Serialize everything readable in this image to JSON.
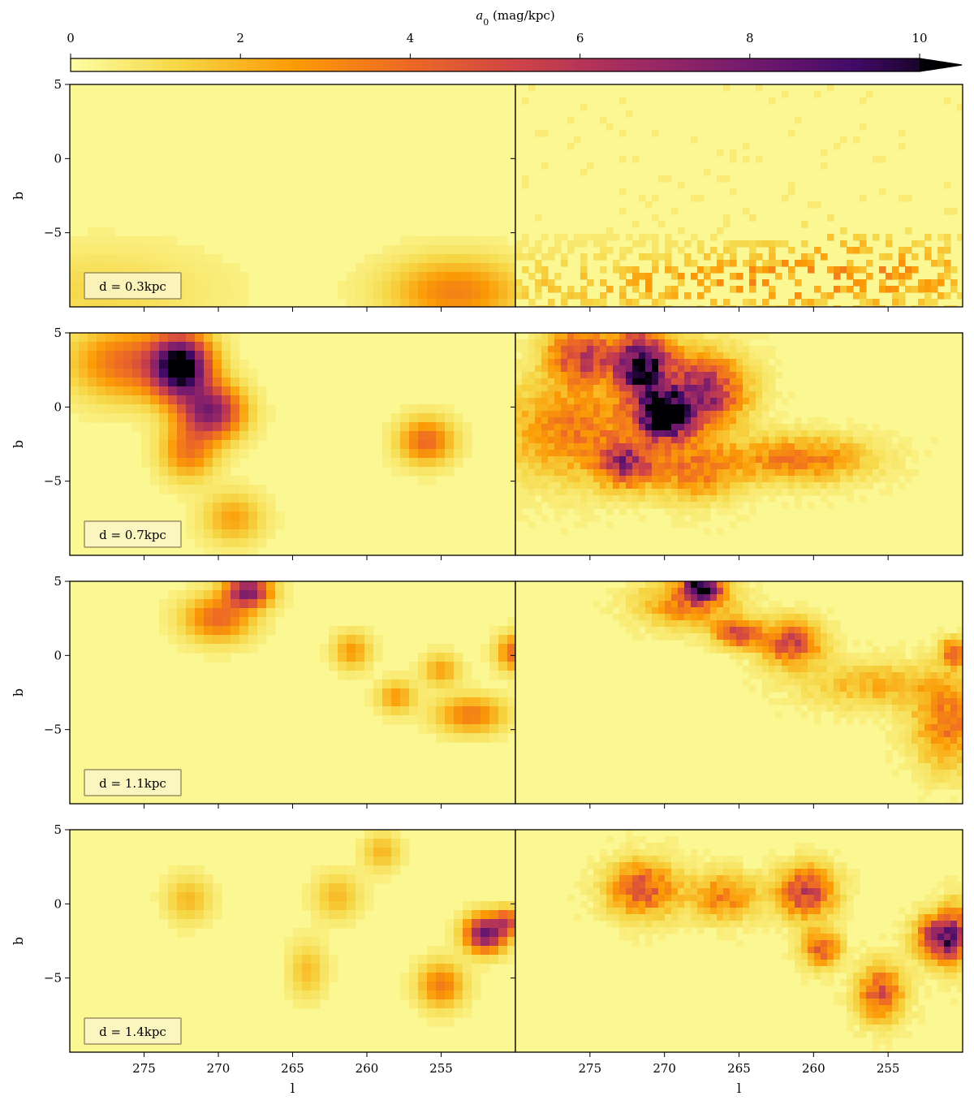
{
  "colorbar": {
    "label_var": "a",
    "label_sub": "0",
    "label_unit": " (mag/kpc)",
    "range": [
      0,
      10
    ],
    "extend": "max",
    "cmap": "inferno_r",
    "ticks": [
      "0",
      "2",
      "4",
      "6",
      "8",
      "10"
    ]
  },
  "axes": {
    "ylabel": "b",
    "xlabel": "l",
    "yticks": [
      "5",
      "0",
      "−5"
    ],
    "xticks": [
      "275",
      "270",
      "265",
      "260",
      "255"
    ]
  },
  "chart_data": {
    "type": "heatmap",
    "xlabel": "l",
    "ylabel": "b",
    "xlim": [
      280,
      250
    ],
    "ylim": [
      -10,
      5
    ],
    "colorbar_range": [
      0,
      10
    ],
    "rows": [
      {
        "distance_label": "d = 0.3kpc",
        "distance_kpc": 0.3,
        "left_blobs": [
          {
            "l": 254,
            "b": -9,
            "sl": 3.0,
            "sb": 1.5,
            "a0": 2.8
          },
          {
            "l": 278,
            "b": -9,
            "sl": 5.0,
            "sb": 2.0,
            "a0": 0.8
          }
        ],
        "right_blobs": [
          {
            "l": 265,
            "b": -8.5,
            "sl": 12.0,
            "sb": 1.2,
            "a0": 1.5
          },
          {
            "l": 257,
            "b": -7.0,
            "sl": 6.0,
            "sb": 1.6,
            "a0": 1.2
          }
        ]
      },
      {
        "distance_label": "d = 0.7kpc",
        "distance_kpc": 0.7,
        "left_blobs": [
          {
            "l": 272.5,
            "b": 2.7,
            "sl": 1.3,
            "sb": 1.4,
            "a0": 10
          },
          {
            "l": 270.5,
            "b": -0.3,
            "sl": 1.4,
            "sb": 1.2,
            "a0": 6.8
          },
          {
            "l": 276,
            "b": 3.0,
            "sl": 2.5,
            "sb": 1.6,
            "a0": 3.5
          },
          {
            "l": 272,
            "b": -3.0,
            "sl": 1.2,
            "sb": 1.2,
            "a0": 3.0
          },
          {
            "l": 256,
            "b": -2.3,
            "sl": 1.2,
            "sb": 1.0,
            "a0": 3.5
          },
          {
            "l": 269,
            "b": -7.5,
            "sl": 1.3,
            "sb": 1.1,
            "a0": 2.0
          }
        ],
        "right_blobs": [
          {
            "l": 270,
            "b": -0.7,
            "sl": 1.2,
            "sb": 1.0,
            "a0": 11
          },
          {
            "l": 271.5,
            "b": 2.8,
            "sl": 1.2,
            "sb": 1.5,
            "a0": 10
          },
          {
            "l": 267.5,
            "b": 1.0,
            "sl": 1.8,
            "sb": 1.6,
            "a0": 6.5
          },
          {
            "l": 275.5,
            "b": 3.5,
            "sl": 1.5,
            "sb": 1.2,
            "a0": 5.0
          },
          {
            "l": 272.5,
            "b": -3.8,
            "sl": 1.2,
            "sb": 1.0,
            "a0": 5.5
          },
          {
            "l": 276,
            "b": -1.5,
            "sl": 3.0,
            "sb": 2.2,
            "a0": 3.0
          },
          {
            "l": 261,
            "b": -3.5,
            "sl": 3.0,
            "sb": 1.0,
            "a0": 3.0
          },
          {
            "l": 268,
            "b": -4.2,
            "sl": 2.0,
            "sb": 1.3,
            "a0": 3.0
          }
        ]
      },
      {
        "distance_label": "d = 1.1kpc",
        "distance_kpc": 1.1,
        "left_blobs": [
          {
            "l": 268,
            "b": 4.3,
            "sl": 1.0,
            "sb": 0.7,
            "a0": 7.0
          },
          {
            "l": 270,
            "b": 2.5,
            "sl": 1.5,
            "sb": 1.0,
            "a0": 3.5
          },
          {
            "l": 261,
            "b": 0.3,
            "sl": 0.8,
            "sb": 0.8,
            "a0": 2.2
          },
          {
            "l": 250,
            "b": 0.2,
            "sl": 0.8,
            "sb": 0.8,
            "a0": 3.5
          },
          {
            "l": 253,
            "b": -4.0,
            "sl": 1.5,
            "sb": 0.8,
            "a0": 3.0
          },
          {
            "l": 258,
            "b": -2.8,
            "sl": 0.8,
            "sb": 0.7,
            "a0": 2.2
          },
          {
            "l": 255,
            "b": -1.0,
            "sl": 0.8,
            "sb": 0.7,
            "a0": 2.0
          }
        ],
        "right_blobs": [
          {
            "l": 267.5,
            "b": 4.6,
            "sl": 0.8,
            "sb": 0.6,
            "a0": 10
          },
          {
            "l": 265,
            "b": 1.5,
            "sl": 1.0,
            "sb": 0.6,
            "a0": 5.0
          },
          {
            "l": 261.5,
            "b": 0.8,
            "sl": 1.3,
            "sb": 1.0,
            "a0": 4.5
          },
          {
            "l": 268.5,
            "b": 3.5,
            "sl": 2.0,
            "sb": 1.0,
            "a0": 3.0
          },
          {
            "l": 250.5,
            "b": 0.2,
            "sl": 0.6,
            "sb": 0.6,
            "a0": 4.0
          },
          {
            "l": 251,
            "b": -4.5,
            "sl": 1.5,
            "sb": 2.0,
            "a0": 3.0
          },
          {
            "l": 256,
            "b": -2.0,
            "sl": 3.0,
            "sb": 1.0,
            "a0": 1.6
          }
        ]
      },
      {
        "distance_label": "d = 1.4kpc",
        "distance_kpc": 1.4,
        "left_blobs": [
          {
            "l": 252,
            "b": -2.0,
            "sl": 0.9,
            "sb": 0.8,
            "a0": 7.5
          },
          {
            "l": 250.5,
            "b": -1.2,
            "sl": 0.6,
            "sb": 0.6,
            "a0": 4.0
          },
          {
            "l": 255,
            "b": -5.5,
            "sl": 1.0,
            "sb": 1.0,
            "a0": 3.0
          },
          {
            "l": 272,
            "b": 0.3,
            "sl": 1.0,
            "sb": 1.0,
            "a0": 1.5
          },
          {
            "l": 262,
            "b": 0.5,
            "sl": 1.0,
            "sb": 1.0,
            "a0": 1.5
          },
          {
            "l": 259,
            "b": 3.5,
            "sl": 0.8,
            "sb": 0.8,
            "a0": 1.6
          },
          {
            "l": 264,
            "b": -4.5,
            "sl": 0.8,
            "sb": 1.2,
            "a0": 1.4
          }
        ],
        "right_blobs": [
          {
            "l": 251.5,
            "b": -2.3,
            "sl": 1.0,
            "sb": 1.0,
            "a0": 6.5
          },
          {
            "l": 260.5,
            "b": 0.8,
            "sl": 1.2,
            "sb": 1.1,
            "a0": 5.0
          },
          {
            "l": 271.5,
            "b": 1.0,
            "sl": 1.5,
            "sb": 1.2,
            "a0": 4.0
          },
          {
            "l": 259.5,
            "b": -3.0,
            "sl": 0.8,
            "sb": 0.8,
            "a0": 4.0
          },
          {
            "l": 255.5,
            "b": -6.0,
            "sl": 1.0,
            "sb": 1.2,
            "a0": 4.0
          },
          {
            "l": 266,
            "b": 0.5,
            "sl": 1.5,
            "sb": 1.0,
            "a0": 2.8
          },
          {
            "l": 250.5,
            "b": -2.0,
            "sl": 0.6,
            "sb": 1.4,
            "a0": 3.0
          }
        ]
      }
    ]
  }
}
